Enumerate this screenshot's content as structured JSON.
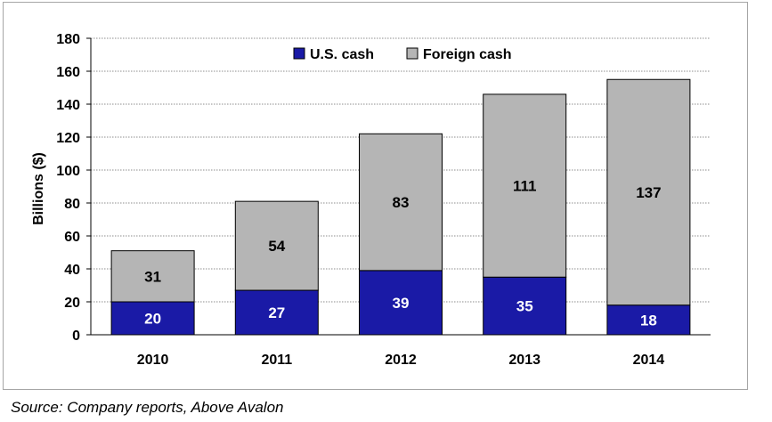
{
  "chart_data": {
    "type": "bar",
    "stacked": true,
    "categories": [
      "2010",
      "2011",
      "2012",
      "2013",
      "2014"
    ],
    "series": [
      {
        "name": "U.S. cash",
        "values": [
          20,
          27,
          39,
          35,
          18
        ],
        "color": "#1a1aa6",
        "label_color": "#ffffff"
      },
      {
        "name": "Foreign cash",
        "values": [
          31,
          54,
          83,
          111,
          137
        ],
        "color": "#b5b5b5",
        "label_color": "#000000"
      }
    ],
    "title": "",
    "xlabel": "",
    "ylabel": "Billions ($)",
    "ylim": [
      0,
      180
    ],
    "yticks": [
      0,
      20,
      40,
      60,
      80,
      100,
      120,
      140,
      160,
      180
    ],
    "grid": true,
    "legend_position": "top-center"
  },
  "source_note": "Source: Company reports, Above Avalon"
}
